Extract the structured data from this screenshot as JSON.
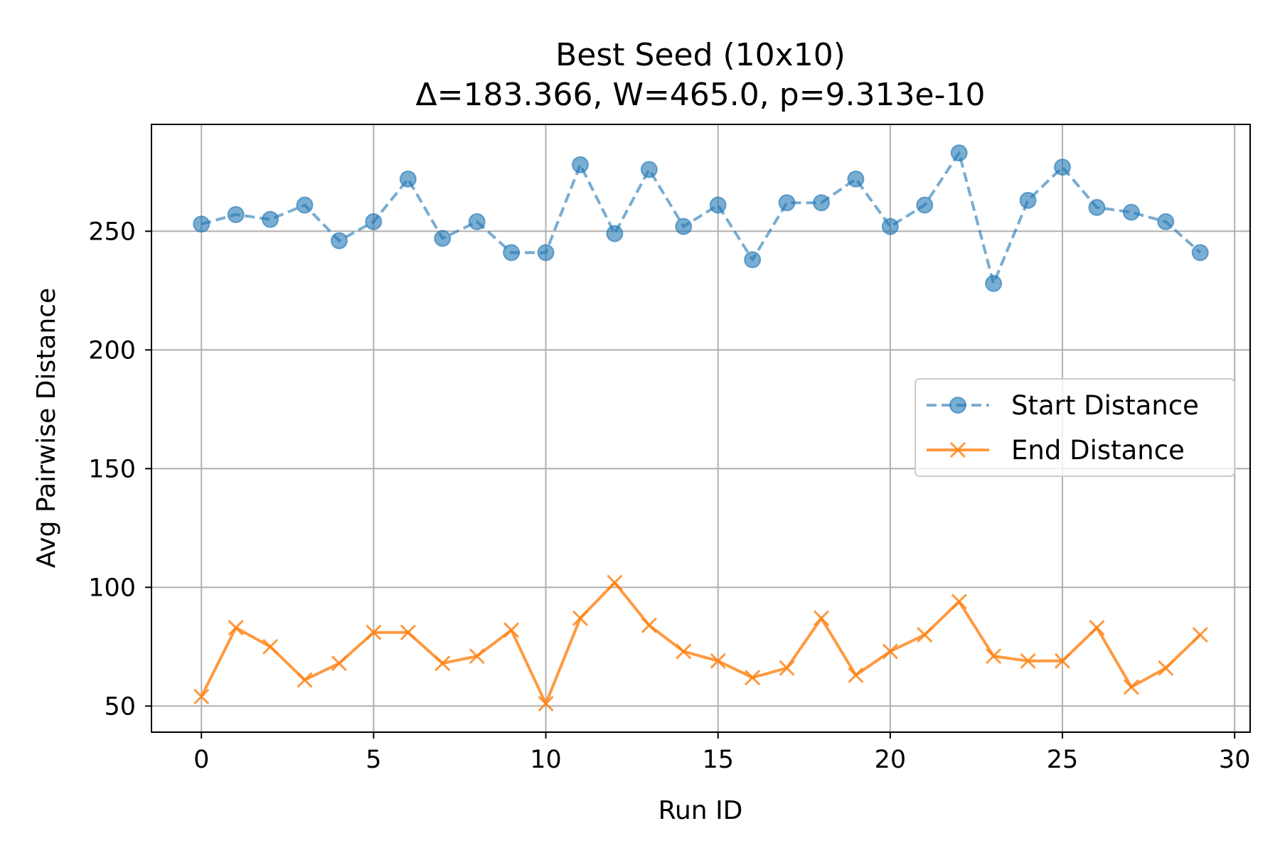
{
  "chart_data": {
    "type": "line",
    "title": "Best Seed (10x10)",
    "subtitle": "Δ=183.366, W=465.0, p=9.313e-10",
    "xlabel": "Run ID",
    "ylabel": "Avg Pairwise Distance",
    "xlim": [
      -1.45,
      30.45
    ],
    "ylim": [
      39,
      295
    ],
    "xticks": [
      0,
      5,
      10,
      15,
      20,
      25,
      30
    ],
    "xtick_labels": [
      "0",
      "5",
      "10",
      "15",
      "20",
      "25",
      "30"
    ],
    "yticks": [
      50,
      100,
      150,
      200,
      250
    ],
    "ytick_labels": [
      "50",
      "100",
      "150",
      "200",
      "250"
    ],
    "grid": true,
    "legend_position": "center-right",
    "x": [
      0,
      1,
      2,
      3,
      4,
      5,
      6,
      7,
      8,
      9,
      10,
      11,
      12,
      13,
      14,
      15,
      16,
      17,
      18,
      19,
      20,
      21,
      22,
      23,
      24,
      25,
      26,
      27,
      28,
      29
    ],
    "series": [
      {
        "name": "Start Distance",
        "color": "#1f77b4",
        "line_style": "dashed",
        "marker": "circle",
        "values": [
          253,
          257,
          255,
          261,
          246,
          254,
          272,
          247,
          254,
          241,
          241,
          278,
          249,
          276,
          252,
          261,
          238,
          262,
          262,
          272,
          252,
          261,
          283,
          228,
          263,
          277,
          260,
          258,
          254,
          241
        ]
      },
      {
        "name": "End Distance",
        "color": "#ff7f0e",
        "line_style": "solid",
        "marker": "x",
        "values": [
          54,
          83,
          75,
          61,
          68,
          81,
          81,
          68,
          71,
          82,
          51,
          87,
          102,
          84,
          73,
          69,
          62,
          66,
          87,
          63,
          73,
          80,
          94,
          71,
          69,
          69,
          83,
          58,
          66,
          80
        ]
      }
    ]
  }
}
